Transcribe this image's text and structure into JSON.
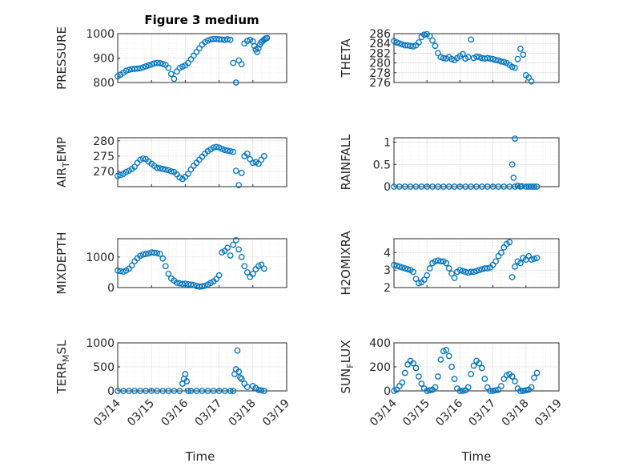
{
  "figure_title": "Figure 3 medium",
  "x_axis_label": "Time",
  "x_tick_labels": [
    "03/14",
    "03/15",
    "03/16",
    "03/17",
    "03/18",
    "03/19"
  ],
  "colors": {
    "marker": "#0072BD",
    "axes": "#262626",
    "grid": "#dcdcdc"
  },
  "chart_data": [
    {
      "type": "scatter",
      "ylabel": "PRESSURE",
      "ylim": [
        800,
        1000
      ],
      "yticks": [
        800,
        900,
        1000
      ],
      "xlim": [
        "2024-03-14",
        "2024-03-19"
      ],
      "x": [
        "03/14 00:00",
        "03/14 02:00",
        "03/14 04:00",
        "03/14 06:00",
        "03/14 08:00",
        "03/14 10:00",
        "03/14 12:00",
        "03/14 14:00",
        "03/14 16:00",
        "03/14 18:00",
        "03/14 20:00",
        "03/14 22:00",
        "03/15 00:00",
        "03/15 02:00",
        "03/15 04:00",
        "03/15 06:00",
        "03/15 08:00",
        "03/15 10:00",
        "03/15 12:00",
        "03/15 14:00",
        "03/15 16:00",
        "03/15 18:00",
        "03/15 20:00",
        "03/15 22:00",
        "03/16 00:00",
        "03/16 02:00",
        "03/16 04:00",
        "03/16 06:00",
        "03/16 08:00",
        "03/16 10:00",
        "03/16 12:00",
        "03/16 14:00",
        "03/16 16:00",
        "03/16 18:00",
        "03/16 20:00",
        "03/16 22:00",
        "03/17 00:00",
        "03/17 02:00",
        "03/17 04:00",
        "03/17 06:00",
        "03/17 08:00",
        "03/17 10:00",
        "03/17 12:00",
        "03/17 14:00",
        "03/17 16:00",
        "03/17 18:00",
        "03/17 20:00",
        "03/17 22:00",
        "03/18 00:00",
        "03/18 01:00",
        "03/18 02:00",
        "03/18 03:00",
        "03/18 04:00",
        "03/18 05:00",
        "03/18 06:00",
        "03/18 07:00",
        "03/18 08:00",
        "03/18 09:00",
        "03/18 10:00"
      ],
      "y": [
        825,
        832,
        840,
        848,
        852,
        855,
        856,
        857,
        858,
        862,
        866,
        870,
        874,
        878,
        880,
        879,
        876,
        872,
        860,
        835,
        815,
        845,
        860,
        865,
        870,
        880,
        895,
        910,
        925,
        940,
        955,
        965,
        972,
        976,
        978,
        978,
        977,
        976,
        975,
        977,
        975,
        880,
        800,
        890,
        875,
        960,
        970,
        975,
        968,
        950,
        935,
        925,
        940,
        955,
        965,
        970,
        975,
        980,
        982
      ]
    },
    {
      "type": "scatter",
      "ylabel": "THETA",
      "ylim": [
        276,
        286
      ],
      "yticks": [
        276,
        278,
        280,
        282,
        284,
        286
      ],
      "xlim": [
        "2024-03-14",
        "2024-03-19"
      ],
      "x": [
        "03/14 00:00",
        "03/14 02:00",
        "03/14 04:00",
        "03/14 06:00",
        "03/14 08:00",
        "03/14 10:00",
        "03/14 12:00",
        "03/14 14:00",
        "03/14 16:00",
        "03/14 18:00",
        "03/14 20:00",
        "03/14 22:00",
        "03/15 00:00",
        "03/15 02:00",
        "03/15 04:00",
        "03/15 06:00",
        "03/15 08:00",
        "03/15 10:00",
        "03/15 12:00",
        "03/15 14:00",
        "03/15 16:00",
        "03/15 18:00",
        "03/15 20:00",
        "03/15 22:00",
        "03/16 00:00",
        "03/16 02:00",
        "03/16 04:00",
        "03/16 06:00",
        "03/16 08:00",
        "03/16 10:00",
        "03/16 12:00",
        "03/16 14:00",
        "03/16 16:00",
        "03/16 18:00",
        "03/16 20:00",
        "03/16 22:00",
        "03/17 00:00",
        "03/17 02:00",
        "03/17 04:00",
        "03/17 06:00",
        "03/17 08:00",
        "03/17 10:00",
        "03/17 12:00",
        "03/17 14:00",
        "03/17 16:00",
        "03/17 18:00",
        "03/17 20:00",
        "03/17 22:00",
        "03/18 00:00",
        "03/18 02:00",
        "03/18 04:00"
      ],
      "y": [
        284.5,
        284.2,
        284.0,
        283.8,
        283.6,
        283.6,
        283.5,
        283.4,
        283.6,
        284.2,
        285.3,
        285.8,
        285.9,
        285.5,
        284.6,
        283.5,
        282.0,
        281.2,
        281.0,
        280.9,
        281.2,
        280.8,
        280.6,
        281.0,
        281.4,
        281.8,
        280.9,
        281.2,
        284.8,
        281.0,
        281.3,
        281.2,
        281.0,
        280.9,
        281.0,
        280.9,
        280.8,
        280.6,
        280.5,
        280.3,
        280.2,
        280.0,
        279.6,
        279.2,
        279.0,
        280.8,
        282.9,
        281.7,
        277.5,
        277.0,
        276.2
      ]
    },
    {
      "type": "scatter",
      "ylabel": "AIR_TEMP",
      "ylim": [
        265,
        281
      ],
      "yticks": [
        270,
        275,
        280
      ],
      "xlim": [
        "2024-03-14",
        "2024-03-19"
      ],
      "x": [
        "03/14 00:00",
        "03/14 02:00",
        "03/14 04:00",
        "03/14 06:00",
        "03/14 08:00",
        "03/14 10:00",
        "03/14 12:00",
        "03/14 14:00",
        "03/14 16:00",
        "03/14 18:00",
        "03/14 20:00",
        "03/14 22:00",
        "03/15 00:00",
        "03/15 02:00",
        "03/15 04:00",
        "03/15 06:00",
        "03/15 08:00",
        "03/15 10:00",
        "03/15 12:00",
        "03/15 14:00",
        "03/15 16:00",
        "03/15 18:00",
        "03/15 20:00",
        "03/15 22:00",
        "03/16 00:00",
        "03/16 02:00",
        "03/16 04:00",
        "03/16 06:00",
        "03/16 08:00",
        "03/16 10:00",
        "03/16 12:00",
        "03/16 14:00",
        "03/16 16:00",
        "03/16 18:00",
        "03/16 20:00",
        "03/16 22:00",
        "03/17 00:00",
        "03/17 02:00",
        "03/17 04:00",
        "03/17 06:00",
        "03/17 08:00",
        "03/17 10:00",
        "03/17 12:00",
        "03/17 14:00",
        "03/17 16:00",
        "03/17 18:00",
        "03/17 20:00",
        "03/17 22:00",
        "03/18 00:00",
        "03/18 02:00",
        "03/18 04:00",
        "03/18 06:00",
        "03/18 08:00"
      ],
      "y": [
        268.5,
        268.8,
        269.2,
        269.8,
        270.2,
        270.8,
        271.5,
        272.8,
        273.8,
        274.2,
        274.0,
        273.2,
        272.5,
        271.8,
        271.2,
        271.0,
        270.8,
        270.6,
        270.4,
        270.0,
        269.8,
        269.0,
        268.0,
        267.5,
        268.2,
        269.2,
        270.6,
        271.8,
        272.8,
        273.8,
        274.8,
        275.8,
        276.6,
        277.2,
        277.8,
        278.0,
        277.8,
        277.4,
        277.0,
        276.8,
        276.6,
        276.4,
        270.2,
        265.5,
        269.5,
        275.0,
        275.8,
        274.0,
        272.8,
        273.0,
        272.5,
        273.8,
        275.0
      ]
    },
    {
      "type": "scatter",
      "ylabel": "RAINFALL",
      "ylim": [
        0,
        1.1
      ],
      "yticks": [
        0,
        0.5,
        1
      ],
      "xlim": [
        "2024-03-14",
        "2024-03-19"
      ],
      "x": [
        "03/14 00:00",
        "03/14 04:00",
        "03/14 08:00",
        "03/14 12:00",
        "03/14 16:00",
        "03/14 20:00",
        "03/15 00:00",
        "03/15 04:00",
        "03/15 08:00",
        "03/15 12:00",
        "03/15 16:00",
        "03/15 20:00",
        "03/16 00:00",
        "03/16 04:00",
        "03/16 08:00",
        "03/16 12:00",
        "03/16 16:00",
        "03/16 20:00",
        "03/17 00:00",
        "03/17 04:00",
        "03/17 08:00",
        "03/17 12:00",
        "03/17 16:00",
        "03/17 20:00",
        "03/18 00:00",
        "03/17 14:00",
        "03/17 15:00",
        "03/17 16:00",
        "03/17 18:00",
        "03/17 21:00",
        "03/18 02:00",
        "03/18 04:00",
        "03/18 06:00",
        "03/18 08:00"
      ],
      "y": [
        0,
        0,
        0,
        0,
        0,
        0,
        0,
        0,
        0,
        0,
        0,
        0,
        0,
        0,
        0,
        0,
        0,
        0,
        0,
        0,
        0,
        0,
        0,
        0,
        0,
        0.5,
        0.2,
        1.08,
        0.02,
        0.01,
        0,
        0,
        0,
        0
      ]
    },
    {
      "type": "scatter",
      "ylabel": "MIXDEPTH",
      "ylim": [
        0,
        1600
      ],
      "yticks": [
        0,
        1000
      ],
      "xlim": [
        "2024-03-14",
        "2024-03-19"
      ],
      "x": [
        "03/14 00:00",
        "03/14 02:00",
        "03/14 04:00",
        "03/14 06:00",
        "03/14 08:00",
        "03/14 10:00",
        "03/14 12:00",
        "03/14 14:00",
        "03/14 16:00",
        "03/14 18:00",
        "03/14 20:00",
        "03/14 22:00",
        "03/15 00:00",
        "03/15 02:00",
        "03/15 04:00",
        "03/15 06:00",
        "03/15 08:00",
        "03/15 10:00",
        "03/15 12:00",
        "03/15 14:00",
        "03/15 16:00",
        "03/15 18:00",
        "03/15 20:00",
        "03/15 22:00",
        "03/16 00:00",
        "03/16 02:00",
        "03/16 04:00",
        "03/16 06:00",
        "03/16 08:00",
        "03/16 10:00",
        "03/16 12:00",
        "03/16 14:00",
        "03/16 16:00",
        "03/16 18:00",
        "03/16 20:00",
        "03/16 22:00",
        "03/17 00:00",
        "03/17 02:00",
        "03/17 04:00",
        "03/17 06:00",
        "03/17 08:00",
        "03/17 10:00",
        "03/17 12:00",
        "03/17 14:00",
        "03/17 16:00",
        "03/17 18:00",
        "03/17 20:00",
        "03/17 22:00",
        "03/18 00:00",
        "03/18 02:00",
        "03/18 04:00",
        "03/18 06:00",
        "03/18 08:00"
      ],
      "y": [
        560,
        540,
        520,
        560,
        620,
        720,
        860,
        960,
        1040,
        1080,
        1100,
        1120,
        1150,
        1140,
        1130,
        1100,
        950,
        700,
        450,
        300,
        230,
        160,
        140,
        120,
        130,
        110,
        100,
        80,
        50,
        30,
        40,
        60,
        100,
        150,
        200,
        280,
        400,
        1150,
        1200,
        1300,
        1050,
        1400,
        1550,
        1250,
        1000,
        700,
        500,
        350,
        450,
        600,
        700,
        750,
        620
      ]
    },
    {
      "type": "scatter",
      "ylabel": "H2OMIXRA",
      "ylim": [
        2,
        4.8
      ],
      "yticks": [
        2,
        3,
        4
      ],
      "xlim": [
        "2024-03-14",
        "2024-03-19"
      ],
      "x": [
        "03/14 00:00",
        "03/14 02:00",
        "03/14 04:00",
        "03/14 06:00",
        "03/14 08:00",
        "03/14 10:00",
        "03/14 12:00",
        "03/14 14:00",
        "03/14 16:00",
        "03/14 18:00",
        "03/14 20:00",
        "03/14 22:00",
        "03/15 00:00",
        "03/15 02:00",
        "03/15 04:00",
        "03/15 06:00",
        "03/15 08:00",
        "03/15 10:00",
        "03/15 12:00",
        "03/15 14:00",
        "03/15 16:00",
        "03/15 18:00",
        "03/15 20:00",
        "03/15 22:00",
        "03/16 00:00",
        "03/16 02:00",
        "03/16 04:00",
        "03/16 06:00",
        "03/16 08:00",
        "03/16 10:00",
        "03/16 12:00",
        "03/16 14:00",
        "03/16 16:00",
        "03/16 18:00",
        "03/16 20:00",
        "03/16 22:00",
        "03/17 00:00",
        "03/17 02:00",
        "03/17 04:00",
        "03/17 06:00",
        "03/17 08:00",
        "03/17 10:00",
        "03/17 12:00",
        "03/17 14:00",
        "03/17 16:00",
        "03/17 18:00",
        "03/17 20:00",
        "03/17 22:00",
        "03/18 00:00",
        "03/18 02:00",
        "03/18 04:00",
        "03/18 06:00",
        "03/18 08:00"
      ],
      "y": [
        3.3,
        3.25,
        3.2,
        3.15,
        3.1,
        3.05,
        3.0,
        2.9,
        2.5,
        2.25,
        2.3,
        2.45,
        2.7,
        3.1,
        3.4,
        3.5,
        3.55,
        3.5,
        3.5,
        3.4,
        3.1,
        2.8,
        2.55,
        2.9,
        3.0,
        2.95,
        2.9,
        2.85,
        2.9,
        2.9,
        2.95,
        3.0,
        3.05,
        3.1,
        3.1,
        3.15,
        3.3,
        3.5,
        3.8,
        4.0,
        4.3,
        4.5,
        4.6,
        2.6,
        3.2,
        3.5,
        3.4,
        3.7,
        3.6,
        3.8,
        3.6,
        3.65,
        3.7
      ]
    },
    {
      "type": "scatter",
      "ylabel": "TERR_MSL",
      "ylim": [
        0,
        1000
      ],
      "yticks": [
        0,
        500,
        1000
      ],
      "xlim": [
        "2024-03-14",
        "2024-03-19"
      ],
      "x": [
        "03/14 00:00",
        "03/14 04:00",
        "03/14 08:00",
        "03/14 12:00",
        "03/14 16:00",
        "03/14 20:00",
        "03/15 00:00",
        "03/15 04:00",
        "03/15 08:00",
        "03/15 12:00",
        "03/15 16:00",
        "03/15 20:00",
        "03/15 22:00",
        "03/15 23:00",
        "03/16 00:00",
        "03/16 01:00",
        "03/16 02:00",
        "03/16 04:00",
        "03/16 08:00",
        "03/16 12:00",
        "03/16 16:00",
        "03/16 20:00",
        "03/17 00:00",
        "03/17 04:00",
        "03/17 08:00",
        "03/17 10:00",
        "03/17 11:00",
        "03/17 12:00",
        "03/17 13:00",
        "03/17 14:00",
        "03/17 15:00",
        "03/17 16:00",
        "03/17 18:00",
        "03/17 20:00",
        "03/18 00:00",
        "03/18 02:00",
        "03/18 04:00",
        "03/18 06:00",
        "03/18 08:00"
      ],
      "y": [
        0,
        0,
        0,
        0,
        0,
        0,
        0,
        0,
        0,
        0,
        0,
        0,
        150,
        250,
        350,
        200,
        0,
        0,
        0,
        0,
        0,
        0,
        0,
        0,
        0,
        0,
        350,
        450,
        840,
        400,
        280,
        250,
        150,
        80,
        100,
        60,
        20,
        10,
        0
      ]
    },
    {
      "type": "scatter",
      "ylabel": "SUN_FLUX",
      "ylim": [
        0,
        400
      ],
      "yticks": [
        0,
        200,
        400
      ],
      "xlim": [
        "2024-03-14",
        "2024-03-19"
      ],
      "x": [
        "03/14 00:00",
        "03/14 02:00",
        "03/14 04:00",
        "03/14 06:00",
        "03/14 08:00",
        "03/14 10:00",
        "03/14 12:00",
        "03/14 14:00",
        "03/14 16:00",
        "03/14 18:00",
        "03/14 20:00",
        "03/14 22:00",
        "03/15 00:00",
        "03/15 02:00",
        "03/15 04:00",
        "03/15 06:00",
        "03/15 08:00",
        "03/15 10:00",
        "03/15 12:00",
        "03/15 14:00",
        "03/15 16:00",
        "03/15 18:00",
        "03/15 20:00",
        "03/15 22:00",
        "03/16 00:00",
        "03/16 02:00",
        "03/16 04:00",
        "03/16 06:00",
        "03/16 08:00",
        "03/16 10:00",
        "03/16 12:00",
        "03/16 14:00",
        "03/16 16:00",
        "03/16 18:00",
        "03/16 20:00",
        "03/16 22:00",
        "03/17 00:00",
        "03/17 02:00",
        "03/17 04:00",
        "03/17 06:00",
        "03/17 08:00",
        "03/17 10:00",
        "03/17 12:00",
        "03/17 14:00",
        "03/17 16:00",
        "03/17 18:00",
        "03/17 20:00",
        "03/17 22:00",
        "03/18 00:00",
        "03/18 02:00",
        "03/18 04:00",
        "03/18 06:00",
        "03/18 08:00"
      ],
      "y": [
        0,
        10,
        40,
        70,
        150,
        220,
        250,
        230,
        190,
        120,
        60,
        20,
        0,
        5,
        10,
        30,
        120,
        260,
        330,
        340,
        290,
        200,
        100,
        20,
        0,
        0,
        5,
        30,
        140,
        210,
        250,
        230,
        190,
        100,
        30,
        0,
        0,
        5,
        10,
        40,
        100,
        130,
        140,
        120,
        80,
        20,
        0,
        0,
        5,
        10,
        30,
        110,
        150
      ]
    }
  ]
}
